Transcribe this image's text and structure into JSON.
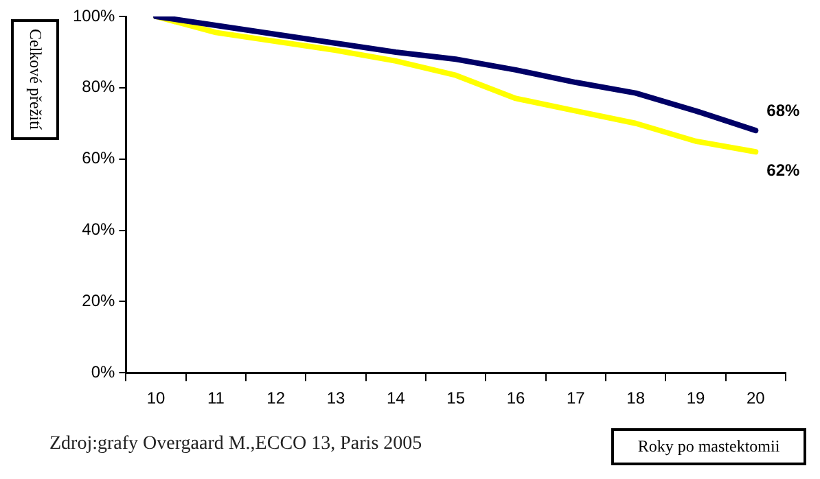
{
  "chart_data": {
    "type": "line",
    "ylabel": "Celkové přežití",
    "xlabel": "Roky po mastektomii",
    "categories": [
      "10",
      "11",
      "12",
      "13",
      "14",
      "15",
      "16",
      "17",
      "18",
      "19",
      "20"
    ],
    "series": [
      {
        "color": "#000066",
        "values": [
          100,
          97.5,
          95,
          92.5,
          90,
          88,
          85,
          81.5,
          78.5,
          73.5,
          68
        ],
        "value_labels": [
          null,
          null,
          null,
          null,
          null,
          null,
          null,
          null,
          null,
          null,
          "68%"
        ]
      },
      {
        "color": "#ffff00",
        "values": [
          100,
          95.5,
          93,
          90.5,
          87.5,
          83.5,
          77,
          73.5,
          70,
          65,
          62
        ],
        "value_labels": [
          null,
          null,
          null,
          null,
          null,
          null,
          null,
          null,
          null,
          null,
          "62%"
        ]
      }
    ],
    "ylim": [
      0,
      100
    ],
    "yticks": [
      {
        "value": 0,
        "label": "0%"
      },
      {
        "value": 20,
        "label": "20%"
      },
      {
        "value": 40,
        "label": "40%"
      },
      {
        "value": 60,
        "label": "60%"
      },
      {
        "value": 80,
        "label": "80%"
      },
      {
        "value": 100,
        "label": "100%"
      }
    ],
    "grid": false,
    "legend": false,
    "marker": "none",
    "line_style": "solid",
    "annotations": [
      "Zdroj:grafy Overgaard M.,ECCO 13, Paris 2005"
    ]
  }
}
